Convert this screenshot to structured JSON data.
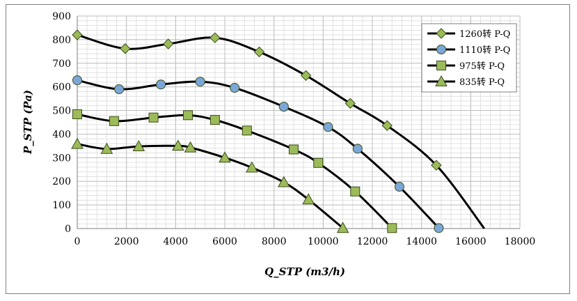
{
  "chart_data": {
    "type": "line",
    "title": "",
    "xlabel": "Q_STP (m3/h)",
    "ylabel": "P_STP (Pa)",
    "xlim": [
      0,
      18000
    ],
    "ylim": [
      0,
      900
    ],
    "x_ticks": [
      0,
      2000,
      4000,
      6000,
      8000,
      10000,
      12000,
      14000,
      16000,
      18000
    ],
    "y_ticks": [
      0,
      100,
      200,
      300,
      400,
      500,
      600,
      700,
      800,
      900
    ],
    "x_tick_labels": [
      "0",
      "2000",
      "4000",
      "6000",
      "8000",
      "10000",
      "12000",
      "14000",
      "16000",
      "18000"
    ],
    "y_tick_labels": [
      "0",
      "100",
      "200",
      "300",
      "400",
      "500",
      "600",
      "700",
      "800",
      "900"
    ],
    "grid": "major and minor",
    "legend_position": "top-right",
    "colors": {
      "line": "#000000",
      "marker_fill": "#9bbb59",
      "marker_fill_circle": "#7ba7d8",
      "marker_edge": "#3c4d1d",
      "grid": "#bfbfbf",
      "grid_minor": "#e0e0e0",
      "frame": "#7f7f7f"
    },
    "series": [
      {
        "name": "1260转 P-Q",
        "marker": "diamond",
        "x": [
          0,
          1950,
          3700,
          5600,
          7400,
          9300,
          11100,
          12600,
          14600
        ],
        "y": [
          820,
          762,
          782,
          808,
          748,
          648,
          530,
          436,
          268
        ],
        "curve_tail": [
          16550,
          0
        ]
      },
      {
        "name": "1110转 P-Q",
        "marker": "circle",
        "x": [
          0,
          1700,
          3400,
          5000,
          6400,
          8400,
          10200,
          11400,
          13100,
          14700
        ],
        "y": [
          628,
          590,
          610,
          622,
          596,
          516,
          430,
          338,
          177,
          2
        ]
      },
      {
        "name": "975转 P-Q",
        "marker": "square",
        "x": [
          0,
          1500,
          3100,
          4500,
          5600,
          6900,
          8800,
          9800,
          11300,
          12800
        ],
        "y": [
          484,
          455,
          470,
          480,
          460,
          415,
          335,
          278,
          157,
          2
        ]
      },
      {
        "name": "835转 P-Q",
        "marker": "triangle",
        "x": [
          0,
          1200,
          2500,
          4100,
          4600,
          6000,
          7100,
          8400,
          9400,
          10800
        ],
        "y": [
          358,
          337,
          348,
          350,
          343,
          300,
          258,
          196,
          123,
          2
        ]
      }
    ]
  }
}
